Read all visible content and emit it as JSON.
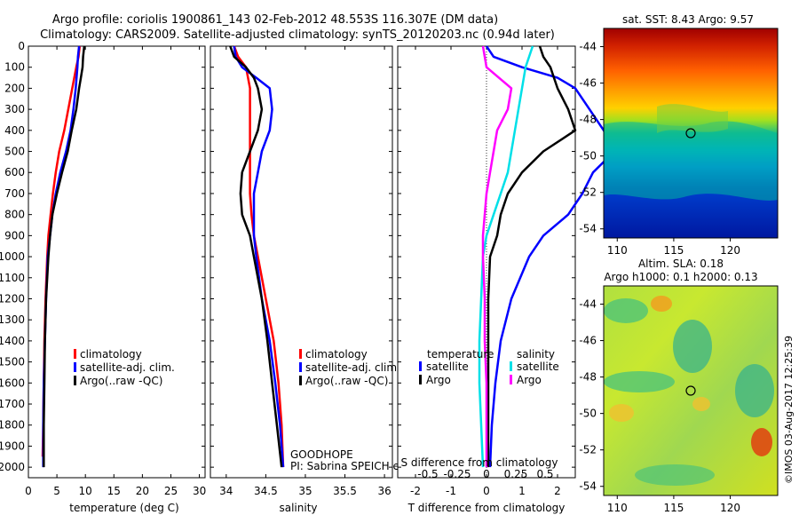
{
  "header": {
    "line1": "Argo profile: coriolis 1900861_143 02-Feb-2012 48.553S 116.307E (DM data)",
    "line2": "Climatology: CARS2009. Satellite-adjusted climatology: synTS_20120203.nc (0.94d later)"
  },
  "colors": {
    "climatology": "#ff0000",
    "satellite": "#0000ff",
    "argo": "#000000",
    "temp_sat": "#0000ff",
    "temp_argo": "#000000",
    "sal_sat": "#00e0e8",
    "sal_argo": "#ff00ff"
  },
  "chart_data": [
    {
      "type": "line",
      "xlabel": "temperature (deg C)",
      "xlim": [
        0,
        31
      ],
      "ylim": [
        0,
        2050
      ],
      "xticks": [
        0,
        5,
        10,
        15,
        20,
        25,
        30
      ],
      "yticks": [
        0,
        100,
        200,
        300,
        400,
        500,
        600,
        700,
        800,
        900,
        1000,
        1100,
        1200,
        1300,
        1400,
        1500,
        1600,
        1700,
        1800,
        1900,
        2000
      ],
      "legend": [
        "climatology",
        "satellite-adj. clim.",
        "Argo(..raw -QC)"
      ],
      "series": [
        {
          "name": "climatology",
          "color": "#ff0000",
          "depth": [
            0,
            50,
            100,
            200,
            300,
            400,
            500,
            600,
            700,
            800,
            900,
            1000,
            1200,
            1400,
            1600,
            1800,
            1950
          ],
          "values": [
            9.0,
            8.8,
            8.4,
            7.7,
            7.0,
            6.3,
            5.4,
            4.8,
            4.3,
            3.9,
            3.5,
            3.3,
            3.0,
            2.8,
            2.7,
            2.6,
            2.5
          ]
        },
        {
          "name": "satellite-adj. clim.",
          "color": "#0000ff",
          "depth": [
            0,
            50,
            100,
            200,
            300,
            400,
            500,
            600,
            700,
            800,
            900,
            1000,
            1200,
            1400,
            1600,
            1800,
            2000
          ],
          "values": [
            8.9,
            8.7,
            8.6,
            8.3,
            7.9,
            7.4,
            6.6,
            5.6,
            4.8,
            4.2,
            3.8,
            3.4,
            3.1,
            2.9,
            2.7,
            2.6,
            2.6
          ]
        },
        {
          "name": "Argo(..raw -QC)",
          "color": "#000000",
          "depth": [
            0,
            50,
            100,
            150,
            200,
            300,
            400,
            500,
            600,
            700,
            800,
            900,
            1000,
            1200,
            1400,
            1600,
            1800,
            2000
          ],
          "values": [
            9.8,
            9.6,
            9.5,
            9.2,
            8.9,
            8.4,
            7.6,
            6.9,
            5.9,
            5.0,
            4.2,
            3.8,
            3.5,
            3.1,
            2.9,
            2.8,
            2.7,
            2.7
          ]
        }
      ]
    },
    {
      "type": "line",
      "xlabel": "salinity",
      "xlim": [
        33.8,
        36.1
      ],
      "ylim": [
        0,
        2050
      ],
      "xticks": [
        34,
        34.5,
        35,
        35.5,
        36
      ],
      "legend": [
        "climatology",
        "satellite-adj. clim.",
        "Argo(..raw -QC)"
      ],
      "annotations": [
        "GOODHOPE",
        "PI: Sabrina SPEICH et Michel ARHAN"
      ],
      "series": [
        {
          "name": "climatology",
          "color": "#ff0000",
          "depth": [
            0,
            50,
            100,
            200,
            300,
            400,
            500,
            600,
            700,
            800,
            900,
            1000,
            1200,
            1400,
            1600,
            1800,
            2000
          ],
          "values": [
            34.1,
            34.15,
            34.25,
            34.3,
            34.3,
            34.3,
            34.3,
            34.3,
            34.3,
            34.32,
            34.35,
            34.4,
            34.5,
            34.6,
            34.66,
            34.7,
            34.72
          ]
        },
        {
          "name": "satellite-adj. clim.",
          "color": "#0000ff",
          "depth": [
            0,
            50,
            100,
            150,
            200,
            300,
            400,
            500,
            600,
            700,
            800,
            900,
            1000,
            1200,
            1400,
            1600,
            1800,
            2000
          ],
          "values": [
            34.1,
            34.12,
            34.2,
            34.38,
            34.55,
            34.58,
            34.55,
            34.45,
            34.4,
            34.35,
            34.35,
            34.35,
            34.38,
            34.45,
            34.55,
            34.62,
            34.68,
            34.72
          ]
        },
        {
          "name": "Argo(..raw -QC)",
          "color": "#000000",
          "depth": [
            0,
            50,
            100,
            150,
            200,
            300,
            400,
            500,
            600,
            700,
            800,
            900,
            1000,
            1200,
            1400,
            1600,
            1800,
            2000
          ],
          "values": [
            34.05,
            34.1,
            34.25,
            34.35,
            34.4,
            34.45,
            34.4,
            34.3,
            34.2,
            34.18,
            34.2,
            34.3,
            34.35,
            34.45,
            34.52,
            34.58,
            34.64,
            34.7
          ]
        }
      ]
    },
    {
      "type": "line",
      "xlabel": "T difference from climatology",
      "xlabel2": "S difference from climatology",
      "xlim": [
        -2.5,
        2.5
      ],
      "ylim": [
        0,
        2050
      ],
      "xticks": [
        -2,
        -1,
        0,
        1,
        2
      ],
      "xticks2": [
        "-0.5",
        "-0.25",
        "0",
        "0.25",
        "0.5"
      ],
      "legend_headers": [
        "temperature",
        "salinity"
      ],
      "legend": [
        "satellite",
        "Argo",
        "satellite",
        "Argo"
      ],
      "series": [
        {
          "name": "satellite",
          "color": "#0000ff",
          "depth": [
            0,
            50,
            100,
            150,
            200,
            300,
            400,
            500,
            600,
            700,
            800,
            900,
            1000,
            1200,
            1400,
            1600,
            1800,
            2000
          ],
          "values": [
            0.0,
            0.2,
            1.0,
            2.0,
            2.5,
            2.9,
            3.3,
            3.6,
            3.0,
            2.7,
            2.3,
            1.6,
            1.2,
            0.7,
            0.4,
            0.25,
            0.15,
            0.1
          ]
        },
        {
          "name": "Argo",
          "color": "#000000",
          "depth": [
            0,
            50,
            100,
            150,
            200,
            300,
            400,
            500,
            600,
            700,
            800,
            900,
            1000,
            1200,
            1400,
            1600,
            1800,
            2000
          ],
          "values": [
            1.5,
            1.6,
            1.8,
            1.9,
            2.0,
            2.3,
            2.5,
            1.6,
            1.0,
            0.6,
            0.4,
            0.3,
            0.1,
            0.05,
            0.05,
            0.05,
            0.05,
            0.05
          ]
        },
        {
          "name": "satellite",
          "color": "#00e0e8",
          "depth": [
            0,
            50,
            100,
            200,
            300,
            400,
            500,
            600,
            700,
            800,
            900,
            1000,
            1200,
            1400,
            1600,
            1800,
            2000
          ],
          "values": [
            1.3,
            1.2,
            1.1,
            1.0,
            0.9,
            0.8,
            0.7,
            0.6,
            0.4,
            0.2,
            0.0,
            -0.1,
            -0.15,
            -0.2,
            -0.2,
            -0.15,
            -0.1
          ]
        },
        {
          "name": "Argo",
          "color": "#ff00ff",
          "depth": [
            0,
            50,
            100,
            200,
            300,
            400,
            500,
            600,
            700,
            800,
            900,
            1000,
            1200,
            1400,
            1600,
            1800,
            2000
          ],
          "values": [
            -0.1,
            -0.05,
            0.0,
            0.7,
            0.6,
            0.3,
            0.2,
            0.1,
            0.0,
            -0.05,
            -0.1,
            -0.1,
            -0.05,
            -0.05,
            0.0,
            0.0,
            0.0
          ]
        }
      ]
    }
  ],
  "maps": {
    "sst_title": "sat. SST: 8.43 Argo: 9.57",
    "sla_title1": "Altim. SLA: 0.18",
    "sla_title2": "Argo h1000: 0.1 h2000: 0.13",
    "y_labels": [
      "-44",
      "-46",
      "-48",
      "-50",
      "-52",
      "-54"
    ],
    "x_labels": [
      "110",
      "115",
      "120"
    ],
    "watermark": "©IMOS 03-Aug-2017 12:25:39"
  }
}
